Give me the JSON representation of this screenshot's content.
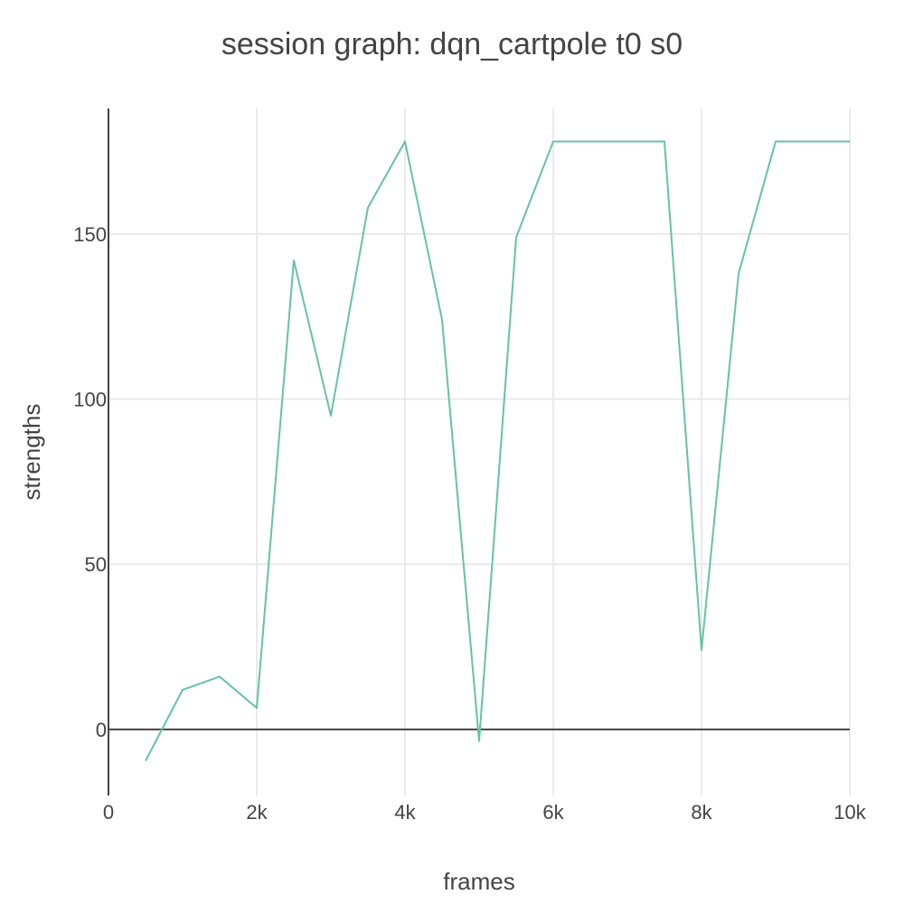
{
  "chart_data": {
    "type": "line",
    "title": "session graph: dqn_cartpole t0 s0",
    "xlabel": "frames",
    "ylabel": "strengths",
    "xlim": [
      0,
      10000
    ],
    "ylim": [
      -20,
      188
    ],
    "x_ticks": [
      {
        "value": 0,
        "label": "0"
      },
      {
        "value": 2000,
        "label": "2k"
      },
      {
        "value": 4000,
        "label": "4k"
      },
      {
        "value": 6000,
        "label": "6k"
      },
      {
        "value": 8000,
        "label": "8k"
      },
      {
        "value": 10000,
        "label": "10k"
      }
    ],
    "y_ticks": [
      {
        "value": 0,
        "label": "0"
      },
      {
        "value": 50,
        "label": "50"
      },
      {
        "value": 100,
        "label": "100"
      },
      {
        "value": 150,
        "label": "150"
      }
    ],
    "grid": true,
    "legend": "none",
    "colors": {
      "series": "#66c2a5",
      "grid": "#eaeaea",
      "axis": "#444444",
      "text": "#444444"
    },
    "series": [
      {
        "x": [
          500,
          1000,
          1500,
          2000,
          2500,
          3000,
          3500,
          4000,
          4500,
          5000,
          5500,
          6000,
          6500,
          7000,
          7500,
          8000,
          8500,
          9000,
          9500,
          10000
        ],
        "values": [
          -9.5,
          12,
          16,
          6.5,
          142,
          95,
          158,
          178,
          124,
          -3.5,
          149,
          178,
          178,
          178,
          178,
          24,
          138,
          178,
          178,
          178
        ]
      }
    ]
  }
}
